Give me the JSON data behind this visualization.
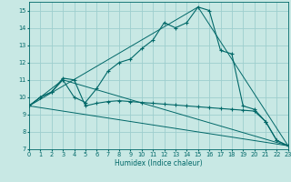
{
  "title": "",
  "xlabel": "Humidex (Indice chaleur)",
  "xlim": [
    0,
    23
  ],
  "ylim": [
    7,
    15.5
  ],
  "yticks": [
    7,
    8,
    9,
    10,
    11,
    12,
    13,
    14,
    15
  ],
  "xticks": [
    0,
    1,
    2,
    3,
    4,
    5,
    6,
    7,
    8,
    9,
    10,
    11,
    12,
    13,
    14,
    15,
    16,
    17,
    18,
    19,
    20,
    21,
    22,
    23
  ],
  "bg_color": "#c8e8e4",
  "grid_color": "#9ecece",
  "line_color": "#006868",
  "series_main": [
    [
      0,
      9.5
    ],
    [
      1,
      10.0
    ],
    [
      2,
      10.3
    ],
    [
      3,
      11.0
    ],
    [
      4,
      10.0
    ],
    [
      5,
      9.7
    ],
    [
      6,
      10.5
    ],
    [
      7,
      11.5
    ],
    [
      8,
      12.0
    ],
    [
      9,
      12.2
    ],
    [
      10,
      12.8
    ],
    [
      11,
      13.3
    ],
    [
      12,
      14.3
    ],
    [
      13,
      14.0
    ],
    [
      14,
      14.3
    ],
    [
      15,
      15.2
    ],
    [
      16,
      15.0
    ],
    [
      17,
      12.7
    ],
    [
      18,
      12.5
    ],
    [
      19,
      9.5
    ],
    [
      20,
      9.3
    ],
    [
      21,
      8.6
    ],
    [
      22,
      7.5
    ],
    [
      23,
      7.2
    ]
  ],
  "series_flat": [
    [
      0,
      9.5
    ],
    [
      1,
      10.0
    ],
    [
      2,
      10.3
    ],
    [
      3,
      11.1
    ],
    [
      4,
      11.0
    ],
    [
      5,
      9.5
    ],
    [
      6,
      9.65
    ],
    [
      7,
      9.75
    ],
    [
      8,
      9.8
    ],
    [
      9,
      9.75
    ],
    [
      10,
      9.7
    ],
    [
      11,
      9.65
    ],
    [
      12,
      9.6
    ],
    [
      13,
      9.55
    ],
    [
      14,
      9.5
    ],
    [
      15,
      9.45
    ],
    [
      16,
      9.4
    ],
    [
      17,
      9.35
    ],
    [
      18,
      9.3
    ],
    [
      19,
      9.25
    ],
    [
      20,
      9.2
    ],
    [
      21,
      8.6
    ],
    [
      22,
      7.5
    ],
    [
      23,
      7.2
    ]
  ],
  "line_straight1": [
    [
      0,
      9.5
    ],
    [
      23,
      7.2
    ]
  ],
  "line_straight2": [
    [
      0,
      9.5
    ],
    [
      15,
      15.2
    ],
    [
      23,
      7.2
    ]
  ],
  "line_straight3": [
    [
      0,
      9.5
    ],
    [
      3,
      11.0
    ],
    [
      23,
      7.2
    ]
  ]
}
